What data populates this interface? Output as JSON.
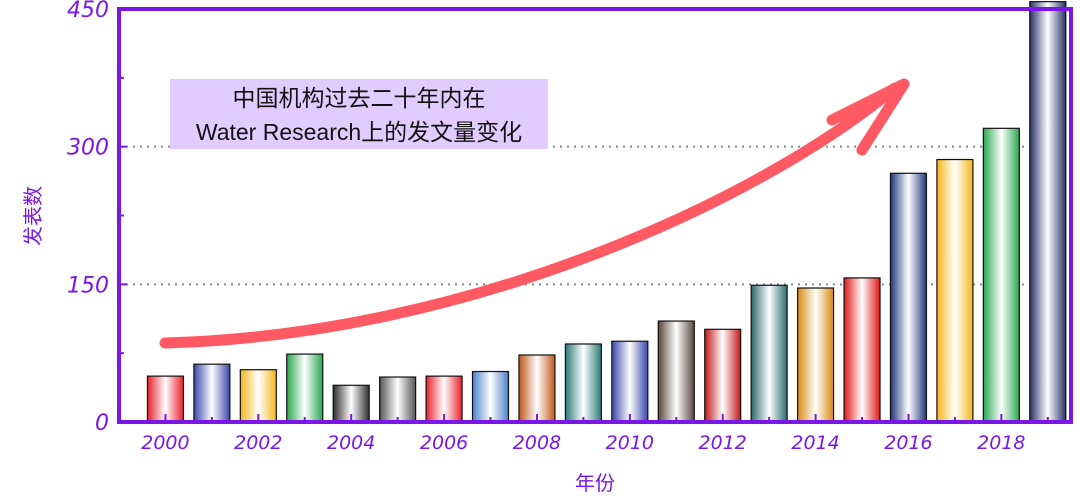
{
  "chart_data": {
    "type": "bar",
    "xlabel": "年份",
    "ylabel": "发表数",
    "ylim": [
      0,
      450
    ],
    "yticks": [
      0,
      150,
      300,
      450
    ],
    "xtick_labels": [
      "2000",
      "2002",
      "2004",
      "2006",
      "2008",
      "2010",
      "2012",
      "2014",
      "2016",
      "2018"
    ],
    "categories": [
      "2000",
      "2001",
      "2002",
      "2003",
      "2004",
      "2005",
      "2006",
      "2007",
      "2008",
      "2009",
      "2010",
      "2011",
      "2012",
      "2013",
      "2014",
      "2015",
      "2016",
      "2017",
      "2018",
      "2019"
    ],
    "values": [
      50,
      63,
      57,
      74,
      40,
      49,
      50,
      55,
      73,
      85,
      88,
      110,
      101,
      149,
      146,
      157,
      271,
      286,
      320,
      458
    ],
    "bar_colors": [
      "#e8202a",
      "#3a46a8",
      "#f5b81a",
      "#27a84e",
      "#2d2d2d",
      "#555555",
      "#e8202a",
      "#4a80c8",
      "#c0561a",
      "#2a7a78",
      "#3a46a8",
      "#5a4840",
      "#c01818",
      "#2a6a6a",
      "#d88a10",
      "#e01818",
      "#1f3a78",
      "#f5b81a",
      "#27a84e",
      "#2a3068"
    ],
    "grid": true,
    "annotation": {
      "lines": [
        "中国机构过去二十年内在",
        "Water Research上的发文量变化"
      ],
      "box_color": "#e2ccff",
      "arrow_color": "#ff5a63"
    },
    "frame_color": "#7b16e8"
  }
}
